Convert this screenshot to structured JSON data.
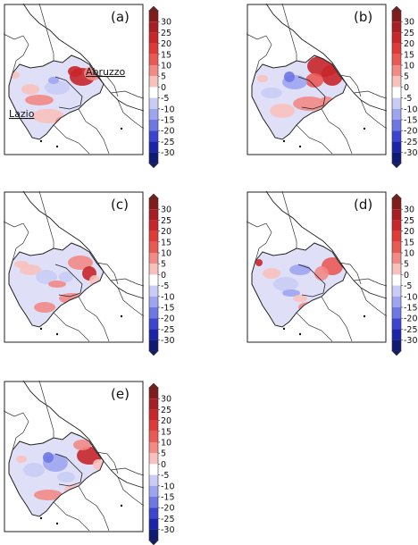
{
  "panels": [
    {
      "id": "a",
      "label": "(a)",
      "pattern": "a"
    },
    {
      "id": "b",
      "label": "(b)",
      "pattern": "b"
    },
    {
      "id": "c",
      "label": "(c)",
      "pattern": "c"
    },
    {
      "id": "d",
      "label": "(d)",
      "pattern": "d"
    },
    {
      "id": "e",
      "label": "(e)",
      "pattern": "e"
    }
  ],
  "region_labels": {
    "abruzzo": "Abruzzo",
    "lazio": "Lazio"
  },
  "colorbar": {
    "ticks": [
      "30",
      "25",
      "20",
      "15",
      "10",
      "5",
      "0",
      "-5",
      "-10",
      "-15",
      "-20",
      "-25",
      "-30"
    ],
    "colors": [
      "#7f1d1d",
      "#a61f25",
      "#c8262a",
      "#dd3b38",
      "#ea5a55",
      "#f28a85",
      "#f8c1bd",
      "#ffffff",
      "#c9cdf5",
      "#9ea5ef",
      "#6f77e3",
      "#3d44cf",
      "#1b23a8",
      "#111a72"
    ]
  }
}
